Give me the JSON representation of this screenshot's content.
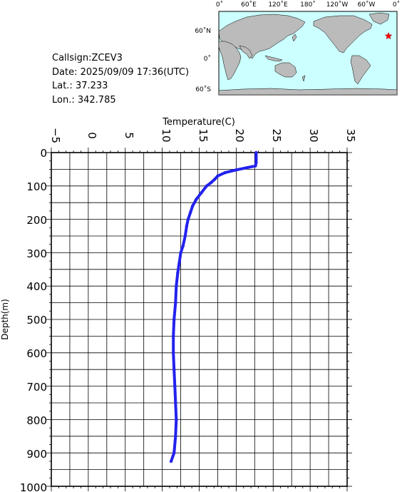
{
  "meta": {
    "callsign": "Callsign:ZCEV3",
    "date": "Date:  2025/09/09 17:36(UTC)",
    "lat": "Lat.:  37.233",
    "lon": "Lon.:  342.785"
  },
  "map": {
    "top_labels": [
      "0˚",
      "60˚E",
      "120˚E",
      "180˚",
      "120˚W",
      "60˚W",
      "0˚"
    ],
    "lat_labels": [
      "60˚N",
      "0˚",
      "60˚S"
    ],
    "marker_lat": 37.233,
    "marker_lon": 342.785,
    "ocean_color": "#ccffff",
    "land_color": "#bbbbbb",
    "marker_color": "#ff0000"
  },
  "chart_data": {
    "type": "line",
    "title": "",
    "xlabel": "Temperature(C)",
    "ylabel": "Depth(m)",
    "xlim": [
      -5,
      35
    ],
    "ylim": [
      0,
      1000
    ],
    "y_inverted": true,
    "x_ticks": [
      "−5",
      "0",
      "5",
      "10",
      "15",
      "20",
      "25",
      "30",
      "35"
    ],
    "y_ticks": [
      "0",
      "100",
      "200",
      "300",
      "400",
      "500",
      "600",
      "700",
      "800",
      "900",
      "1000"
    ],
    "grid": true,
    "line_color": "#2222ee",
    "series": [
      {
        "x": [
          22.7,
          22.7,
          22.7,
          22.7,
          22.6,
          21.5,
          20.0,
          18.5,
          17.5,
          17.1,
          16.6,
          16.0,
          15.3,
          14.6,
          14.1,
          13.8,
          13.5,
          13.3,
          13.1,
          12.8,
          12.5,
          12.3,
          12.1,
          11.9,
          11.8,
          11.6,
          11.5,
          11.5,
          11.6,
          11.7,
          11.8,
          11.9,
          11.8,
          11.6,
          11.2
        ],
        "y": [
          0,
          10,
          20,
          30,
          40,
          45,
          52,
          60,
          70,
          80,
          90,
          100,
          120,
          140,
          160,
          180,
          200,
          220,
          250,
          280,
          300,
          330,
          360,
          400,
          450,
          500,
          550,
          600,
          650,
          700,
          750,
          800,
          850,
          900,
          925
        ]
      }
    ]
  }
}
